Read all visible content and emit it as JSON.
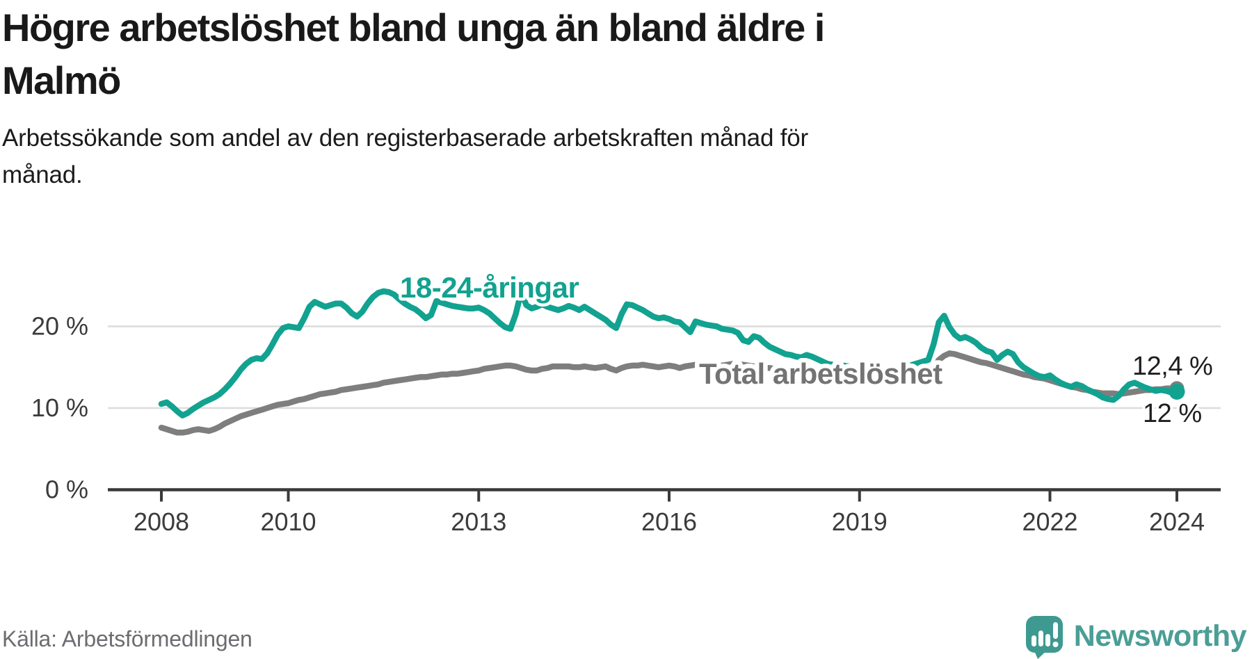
{
  "header": {
    "title": "Högre arbetslöshet bland unga än bland äldre i\nMalmö",
    "subtitle": "Arbetssökande som andel av den registerbaserade arbetskraften månad för\nmånad."
  },
  "footer": {
    "source": "Källa: Arbetsförmedlingen",
    "brand": "Newsworthy",
    "logo_icon": "newsworthy-speech-bubble-bar-chart-icon"
  },
  "colors": {
    "youth_line": "#12a290",
    "total_line": "#7e7e7e",
    "total_label": "#737373",
    "grid": "#dcdcdc",
    "axis": "#3a3a3a",
    "text": "#191919",
    "logo": "#3e9a90"
  },
  "chart_data": {
    "type": "line",
    "title": "Högre arbetslöshet bland unga än bland äldre i Malmö",
    "subtitle": "Arbetssökande som andel av den registerbaserade arbetskraften månad för månad.",
    "xlabel": "",
    "ylabel": "",
    "unit": "%",
    "frequency": "monthly",
    "x_start": "2008-01",
    "x_end": "2024-01",
    "ylim": [
      0,
      26
    ],
    "grid": "horizontal",
    "legend_position": "inline-labels",
    "y_ticks": [
      {
        "value": 0,
        "label": "0 %"
      },
      {
        "value": 10,
        "label": "10 %"
      },
      {
        "value": 20,
        "label": "20 %"
      }
    ],
    "x_ticks": [
      {
        "year": 2008,
        "label": "2008"
      },
      {
        "year": 2010,
        "label": "2010"
      },
      {
        "year": 2013,
        "label": "2013"
      },
      {
        "year": 2016,
        "label": "2016"
      },
      {
        "year": 2019,
        "label": "2019"
      },
      {
        "year": 2022,
        "label": "2022"
      },
      {
        "year": 2024,
        "label": "2024"
      }
    ],
    "series": [
      {
        "id": "youth",
        "name": "18-24-åringar",
        "label": "18-24-åringar",
        "color": "#12a290",
        "end_value": 12.0,
        "end_label": "12 %",
        "values": [
          10.5,
          10.7,
          10.2,
          9.6,
          9.1,
          9.4,
          9.9,
          10.3,
          10.7,
          11.0,
          11.3,
          11.7,
          12.3,
          13.0,
          13.8,
          14.7,
          15.4,
          15.9,
          16.1,
          16.0,
          16.7,
          17.8,
          19.0,
          19.8,
          20.0,
          19.9,
          19.8,
          21.0,
          22.4,
          23.0,
          22.7,
          22.4,
          22.6,
          22.8,
          22.8,
          22.3,
          21.6,
          21.2,
          21.8,
          22.8,
          23.6,
          24.1,
          24.3,
          24.2,
          23.9,
          23.3,
          22.8,
          22.4,
          22.1,
          21.6,
          21.0,
          21.4,
          23.1,
          22.9,
          22.7,
          22.5,
          22.4,
          22.3,
          22.2,
          22.2,
          22.3,
          22.0,
          21.6,
          21.0,
          20.4,
          19.9,
          19.7,
          21.5,
          24.2,
          22.6,
          22.2,
          22.4,
          22.7,
          22.4,
          22.2,
          22.0,
          22.2,
          22.5,
          22.3,
          22.0,
          22.4,
          22.0,
          21.6,
          21.2,
          20.8,
          20.2,
          19.8,
          21.5,
          22.7,
          22.6,
          22.3,
          22.0,
          21.6,
          21.2,
          21.0,
          21.1,
          20.9,
          20.6,
          20.5,
          19.9,
          19.3,
          20.6,
          20.4,
          20.2,
          20.1,
          20.0,
          19.7,
          19.6,
          19.5,
          19.2,
          18.3,
          18.1,
          18.8,
          18.6,
          18.0,
          17.5,
          17.2,
          16.9,
          16.6,
          16.5,
          16.3,
          16.2,
          16.5,
          16.3,
          16.0,
          15.7,
          15.4,
          15.3,
          15.3,
          15.2,
          15.1,
          15.0,
          14.8,
          14.6,
          14.3,
          14.1,
          14.0,
          14.1,
          14.3,
          14.6,
          14.9,
          15.1,
          15.3,
          15.5,
          15.7,
          15.9,
          17.8,
          20.5,
          21.3,
          19.9,
          19.0,
          18.5,
          18.7,
          18.4,
          18.0,
          17.4,
          17.0,
          16.8,
          15.9,
          16.5,
          16.9,
          16.6,
          15.6,
          15.0,
          14.6,
          14.2,
          13.9,
          13.8,
          14.0,
          13.5,
          13.1,
          12.8,
          12.6,
          12.9,
          12.7,
          12.3,
          12.0,
          11.7,
          11.3,
          11.1,
          11.0,
          11.5,
          12.3,
          12.9,
          13.1,
          12.8,
          12.5,
          12.3,
          12.1,
          12.2,
          12.1,
          11.9,
          12.0
        ]
      },
      {
        "id": "total",
        "name": "Total arbetslöshet",
        "label": "Total arbetslöshet",
        "color": "#7e7e7e",
        "end_value": 12.4,
        "end_label": "12,4 %",
        "values": [
          7.6,
          7.4,
          7.2,
          7.0,
          7.0,
          7.1,
          7.3,
          7.4,
          7.3,
          7.2,
          7.4,
          7.7,
          8.1,
          8.4,
          8.7,
          9.0,
          9.2,
          9.4,
          9.6,
          9.8,
          10.0,
          10.2,
          10.4,
          10.5,
          10.6,
          10.8,
          11.0,
          11.1,
          11.3,
          11.5,
          11.7,
          11.8,
          11.9,
          12.0,
          12.2,
          12.3,
          12.4,
          12.5,
          12.6,
          12.7,
          12.8,
          12.9,
          13.1,
          13.2,
          13.3,
          13.4,
          13.5,
          13.6,
          13.7,
          13.8,
          13.8,
          13.9,
          14.0,
          14.1,
          14.1,
          14.2,
          14.2,
          14.3,
          14.4,
          14.5,
          14.6,
          14.8,
          14.9,
          15.0,
          15.1,
          15.2,
          15.2,
          15.1,
          14.9,
          14.7,
          14.6,
          14.6,
          14.8,
          14.9,
          15.1,
          15.1,
          15.1,
          15.1,
          15.0,
          15.0,
          15.1,
          15.0,
          14.9,
          15.0,
          15.1,
          14.8,
          14.6,
          14.9,
          15.1,
          15.2,
          15.2,
          15.3,
          15.2,
          15.1,
          15.0,
          15.1,
          15.2,
          15.1,
          14.9,
          15.1,
          15.2,
          15.3,
          15.4,
          15.4,
          15.3,
          15.3,
          15.2,
          15.3,
          15.4,
          15.4,
          15.3,
          15.2,
          15.1,
          15.0,
          14.9,
          14.9,
          14.8,
          14.7,
          14.6,
          14.6,
          14.6,
          14.5,
          14.4,
          14.4,
          14.3,
          14.2,
          14.1,
          14.1,
          14.0,
          14.0,
          13.9,
          13.9,
          13.9,
          13.8,
          13.8,
          13.7,
          13.7,
          13.8,
          13.8,
          13.9,
          14.0,
          14.0,
          14.1,
          14.1,
          14.1,
          14.2,
          14.9,
          15.9,
          16.4,
          16.7,
          16.6,
          16.4,
          16.2,
          16.0,
          15.8,
          15.6,
          15.5,
          15.3,
          15.1,
          14.9,
          14.7,
          14.5,
          14.3,
          14.1,
          14.0,
          13.8,
          13.7,
          13.6,
          13.4,
          13.2,
          13.0,
          12.8,
          12.6,
          12.5,
          12.3,
          12.2,
          12.0,
          11.9,
          11.8,
          11.8,
          11.8,
          11.7,
          11.8,
          11.9,
          12.0,
          12.1,
          12.2,
          12.2,
          12.3,
          12.3,
          12.4,
          12.4,
          12.4
        ]
      }
    ]
  }
}
